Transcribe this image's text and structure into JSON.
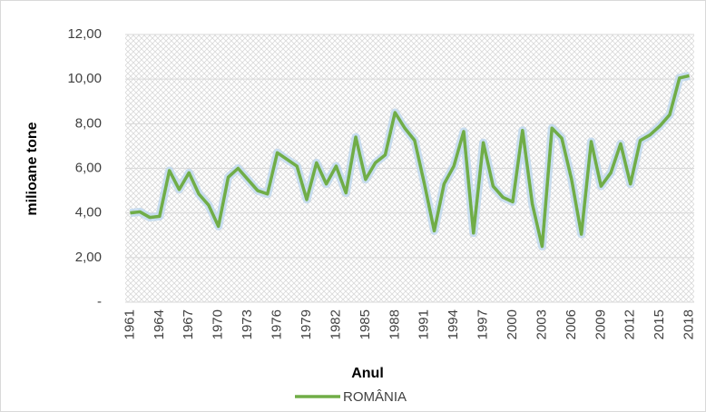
{
  "chart_data": {
    "type": "line",
    "x_label": "Anul",
    "y_label": "milioane tone",
    "categories": [
      "1961",
      null,
      null,
      "1964",
      null,
      null,
      "1967",
      null,
      null,
      "1970",
      null,
      null,
      "1973",
      null,
      null,
      "1976",
      null,
      null,
      "1979",
      null,
      null,
      "1982",
      null,
      null,
      "1985",
      null,
      null,
      "1988",
      null,
      null,
      "1991",
      null,
      null,
      "1994",
      null,
      null,
      "1997",
      null,
      null,
      "2000",
      null,
      null,
      "2003",
      null,
      null,
      "2006",
      null,
      null,
      "2009",
      null,
      null,
      "2012",
      null,
      null,
      "2015",
      null,
      null,
      "2018"
    ],
    "series": [
      {
        "name": "ROMÂNIA",
        "color": "#70ad47",
        "values": [
          4.0,
          4.05,
          3.8,
          3.85,
          5.9,
          5.05,
          5.8,
          4.85,
          4.35,
          3.4,
          5.6,
          6.0,
          5.5,
          5.0,
          4.85,
          6.7,
          6.4,
          6.1,
          4.6,
          6.25,
          5.3,
          6.1,
          4.9,
          7.4,
          5.5,
          6.25,
          6.6,
          8.5,
          7.8,
          7.25,
          5.3,
          3.2,
          5.3,
          6.1,
          7.65,
          3.1,
          7.15,
          5.2,
          4.7,
          4.5,
          7.7,
          4.4,
          2.5,
          7.8,
          7.35,
          5.5,
          3.05,
          7.2,
          5.2,
          5.8,
          7.1,
          5.3,
          7.25,
          7.5,
          7.9,
          8.4,
          10.05,
          10.15
        ]
      }
    ],
    "ylim": [
      0,
      12
    ],
    "yticks": [
      {
        "value": 0,
        "label": "-"
      },
      {
        "value": 2,
        "label": "2,00"
      },
      {
        "value": 4,
        "label": "4,00"
      },
      {
        "value": 6,
        "label": "6,00"
      },
      {
        "value": 8,
        "label": "8,00"
      },
      {
        "value": 10,
        "label": "10,00"
      },
      {
        "value": 12,
        "label": "12,00"
      }
    ],
    "grid": true,
    "legend": "bottom"
  }
}
